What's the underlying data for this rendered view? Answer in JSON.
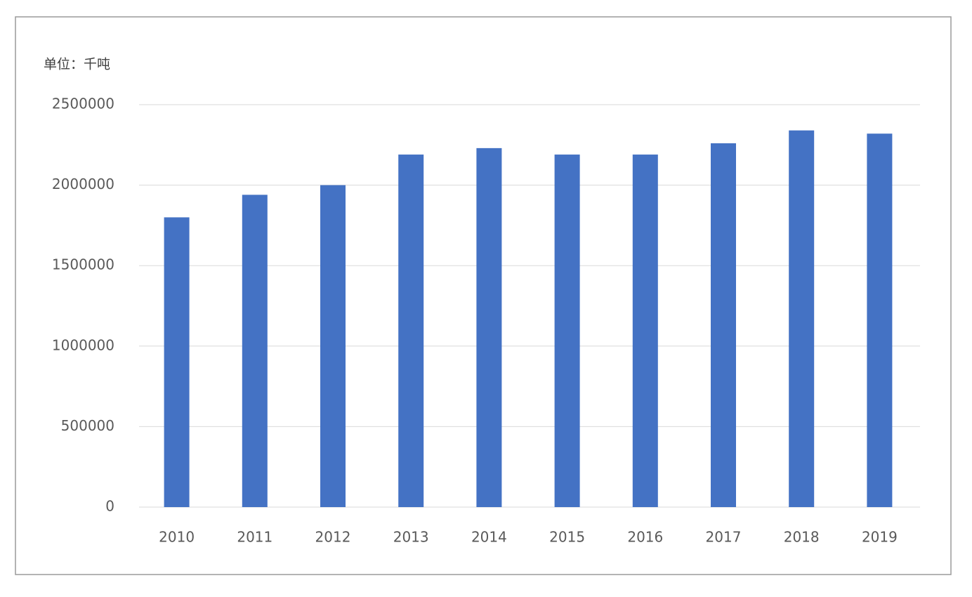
{
  "chart_data": {
    "type": "bar",
    "y_axis_label": "单位：千吨",
    "categories": [
      "2010",
      "2011",
      "2012",
      "2013",
      "2014",
      "2015",
      "2016",
      "2017",
      "2018",
      "2019"
    ],
    "values": [
      1800000,
      1940000,
      2000000,
      2190000,
      2230000,
      2190000,
      2190000,
      2260000,
      2340000,
      2320000
    ],
    "color": "#4472c4",
    "ylim": [
      0,
      2500000
    ],
    "yticks": [
      0,
      500000,
      1000000,
      1500000,
      2000000,
      2500000
    ],
    "grid": true
  }
}
